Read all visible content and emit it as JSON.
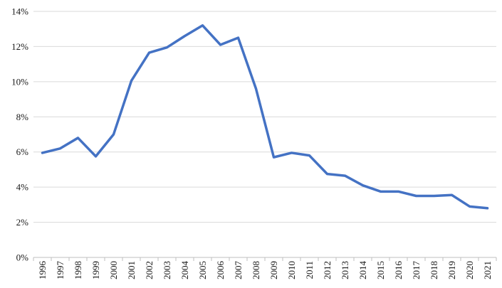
{
  "chart_data": {
    "type": "line",
    "title": "",
    "xlabel": "",
    "ylabel": "",
    "categories": [
      "1996",
      "1997",
      "1998",
      "1999",
      "2000",
      "2001",
      "2002",
      "2003",
      "2004",
      "2005",
      "2006",
      "2007",
      "2008",
      "2009",
      "2010",
      "2011",
      "2012",
      "2013",
      "2014",
      "2015",
      "2016",
      "2017",
      "2018",
      "2019",
      "2020",
      "2021"
    ],
    "series": [
      {
        "values": [
          5.95,
          6.2,
          6.8,
          5.75,
          7.0,
          10.05,
          11.65,
          11.95,
          12.6,
          13.2,
          12.1,
          12.5,
          9.6,
          5.7,
          5.95,
          5.8,
          4.75,
          4.65,
          4.1,
          3.75,
          3.75,
          3.5,
          3.5,
          3.55,
          2.9,
          2.8
        ],
        "color": "#4472c4"
      }
    ],
    "ylim": [
      0,
      14
    ],
    "y_ticks": [
      0,
      2,
      4,
      6,
      8,
      10,
      12,
      14
    ],
    "y_tick_labels": [
      "0%",
      "2%",
      "4%",
      "6%",
      "8%",
      "10%",
      "12%",
      "14%"
    ],
    "grid": true,
    "legend": "none"
  }
}
